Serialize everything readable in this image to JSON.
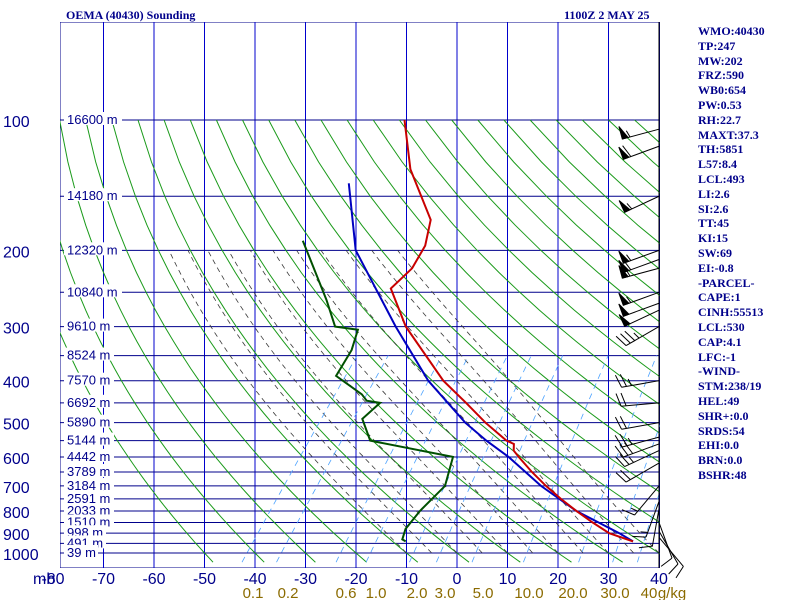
{
  "header": {
    "station": "OEMA (40430) Sounding",
    "time": "1100Z  2 MAY 25"
  },
  "indices": [
    "WMO:40430",
    "TP:247",
    "MW:202",
    "FRZ:590",
    "WB0:654",
    "PW:0.53",
    "RH:22.7",
    "MAXT:37.3",
    "TH:5851",
    "L57:8.4",
    "LCL:493",
    "LI:2.6",
    "SI:2.6",
    "TT:45",
    "KI:15",
    "SW:69",
    "EI:-0.8",
    "-PARCEL-",
    "CAPE:1",
    "CINH:55513",
    "LCL:530",
    "CAP:4.1",
    "LFC:-1",
    "-WIND-",
    "STM:238/19",
    "HEL:49",
    "SHR+:0.0",
    "SRDS:54",
    "EHI:0.0",
    "BRN:0.0",
    "BSHR:48"
  ],
  "colors": {
    "isobar": "#00008b",
    "isotherm": "#0000cd",
    "dry_adiabat": "#1a9a1a",
    "moist_adiabat": "#3a3a3a",
    "mixing_ratio": "#4da3ff",
    "temperature": "#c80000",
    "dewpoint": "#005000",
    "parcel": "#0000c0",
    "label_text": "#00008b",
    "mixing_label": "#8b6b00",
    "wind_barb": "#000000"
  },
  "chart_data": {
    "type": "skew-T log-P sounding",
    "x_axis": {
      "label": "mb",
      "unit": "°C",
      "ticks": [
        "-80",
        "-70",
        "-60",
        "-50",
        "-40",
        "-30",
        "-20",
        "-10",
        "0",
        "10",
        "20",
        "30",
        "40"
      ]
    },
    "y_axis": {
      "unit": "mb",
      "ticks": [
        "100",
        "200",
        "300",
        "400",
        "500",
        "600",
        "700",
        "800",
        "900",
        "1000"
      ]
    },
    "height_labels": [
      "16600 m",
      "14180 m",
      "12320 m",
      "10840 m",
      "9610 m",
      "8524 m",
      "7570 m",
      "6692 m",
      "5890 m",
      "5144 m",
      "4442 m",
      "3789 m",
      "3184 m",
      "2591 m",
      "2033 m",
      "1510 m",
      "998 m",
      "491 m",
      "39 m"
    ],
    "height_pressures": [
      100,
      150,
      200,
      250,
      300,
      350,
      400,
      450,
      500,
      550,
      600,
      650,
      700,
      750,
      800,
      850,
      900,
      950,
      1000
    ],
    "mixing_ratio_labels": [
      "0.1",
      "0.2",
      "0.6",
      "1.0",
      "2.0",
      "3.0",
      "5.0",
      "10.0",
      "20.0",
      "30.0",
      "40",
      "g/kg"
    ],
    "temperature": [
      {
        "p": 100,
        "t": -79
      },
      {
        "p": 130,
        "t": -70
      },
      {
        "p": 170,
        "t": -58
      },
      {
        "p": 195,
        "t": -55
      },
      {
        "p": 220,
        "t": -54
      },
      {
        "p": 245,
        "t": -55
      },
      {
        "p": 300,
        "t": -46
      },
      {
        "p": 400,
        "t": -30
      },
      {
        "p": 450,
        "t": -22
      },
      {
        "p": 500,
        "t": -15
      },
      {
        "p": 550,
        "t": -8
      },
      {
        "p": 560,
        "t": -6
      },
      {
        "p": 580,
        "t": -5
      },
      {
        "p": 600,
        "t": -3
      },
      {
        "p": 650,
        "t": 2
      },
      {
        "p": 700,
        "t": 7
      },
      {
        "p": 750,
        "t": 12
      },
      {
        "p": 800,
        "t": 17
      },
      {
        "p": 850,
        "t": 22
      },
      {
        "p": 900,
        "t": 27
      },
      {
        "p": 940,
        "t": 33
      }
    ],
    "dewpoint": [
      {
        "p": 190,
        "t": -80
      },
      {
        "p": 260,
        "t": -66
      },
      {
        "p": 300,
        "t": -60
      },
      {
        "p": 305,
        "t": -55
      },
      {
        "p": 340,
        "t": -53
      },
      {
        "p": 390,
        "t": -52
      },
      {
        "p": 430,
        "t": -44
      },
      {
        "p": 445,
        "t": -42
      },
      {
        "p": 450,
        "t": -39
      },
      {
        "p": 490,
        "t": -40
      },
      {
        "p": 550,
        "t": -35
      },
      {
        "p": 600,
        "t": -16
      },
      {
        "p": 700,
        "t": -13
      },
      {
        "p": 800,
        "t": -14
      },
      {
        "p": 880,
        "t": -14
      },
      {
        "p": 930,
        "t": -13
      },
      {
        "p": 940,
        "t": -12
      }
    ],
    "parcel": [
      {
        "p": 140,
        "t": -80
      },
      {
        "p": 200,
        "t": -68
      },
      {
        "p": 300,
        "t": -48
      },
      {
        "p": 400,
        "t": -33
      },
      {
        "p": 500,
        "t": -19
      },
      {
        "p": 550,
        "t": -12
      },
      {
        "p": 600,
        "t": -5
      },
      {
        "p": 700,
        "t": 6
      },
      {
        "p": 800,
        "t": 17
      },
      {
        "p": 900,
        "t": 29
      },
      {
        "p": 940,
        "t": 33
      }
    ],
    "wind_barbs": [
      {
        "p": 105,
        "dir": 255,
        "spd": 55
      },
      {
        "p": 115,
        "dir": 250,
        "spd": 60
      },
      {
        "p": 150,
        "dir": 245,
        "spd": 55
      },
      {
        "p": 200,
        "dir": 250,
        "spd": 55
      },
      {
        "p": 210,
        "dir": 250,
        "spd": 60
      },
      {
        "p": 220,
        "dir": 255,
        "spd": 60
      },
      {
        "p": 250,
        "dir": 250,
        "spd": 55
      },
      {
        "p": 265,
        "dir": 250,
        "spd": 50
      },
      {
        "p": 275,
        "dir": 245,
        "spd": 50
      },
      {
        "p": 300,
        "dir": 240,
        "spd": 35
      },
      {
        "p": 400,
        "dir": 260,
        "spd": 25
      },
      {
        "p": 450,
        "dir": 265,
        "spd": 20
      },
      {
        "p": 500,
        "dir": 260,
        "spd": 20
      },
      {
        "p": 540,
        "dir": 255,
        "spd": 25
      },
      {
        "p": 560,
        "dir": 250,
        "spd": 30
      },
      {
        "p": 580,
        "dir": 245,
        "spd": 25
      },
      {
        "p": 620,
        "dir": 240,
        "spd": 20
      },
      {
        "p": 700,
        "dir": 220,
        "spd": 15
      },
      {
        "p": 760,
        "dir": 200,
        "spd": 15
      },
      {
        "p": 790,
        "dir": 190,
        "spd": 10
      },
      {
        "p": 850,
        "dir": 160,
        "spd": 10
      },
      {
        "p": 890,
        "dir": 150,
        "spd": 10
      },
      {
        "p": 920,
        "dir": 140,
        "spd": 10
      }
    ]
  }
}
